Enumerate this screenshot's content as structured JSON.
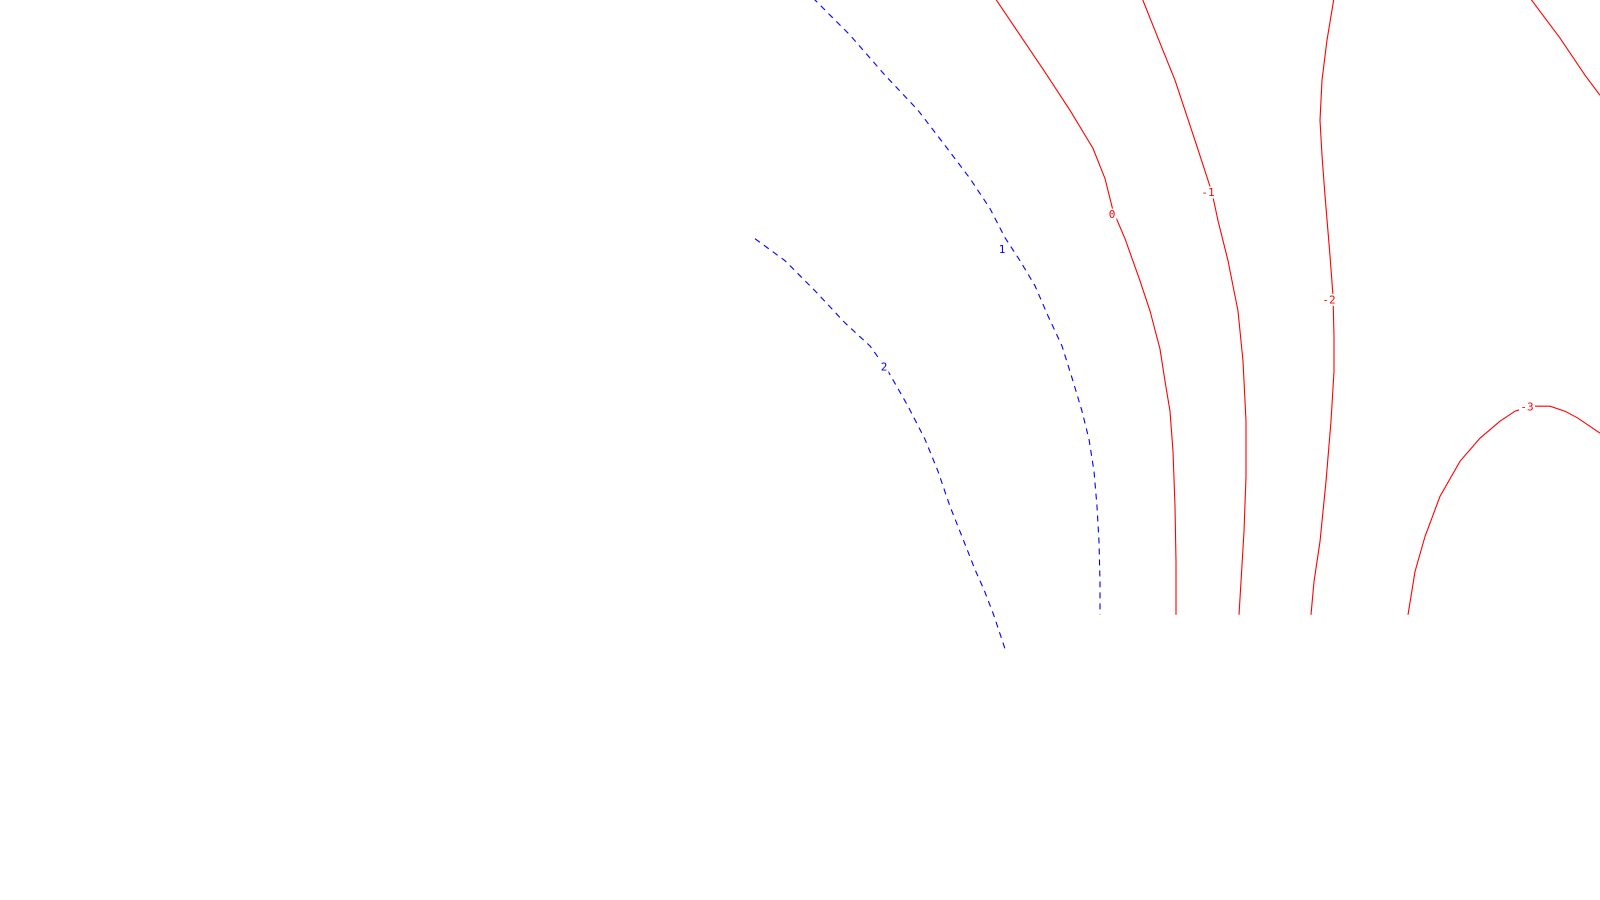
{
  "chart_data": {
    "type": "contour",
    "xlim": [
      0,
      1600
    ],
    "ylim": [
      0,
      700
    ],
    "colors": {
      "positive": "#0000ff",
      "zero_and_negative": "#ff0000",
      "background": "#ffffff"
    },
    "grid": false,
    "legend": "none",
    "levels": [
      {
        "level": 2,
        "label": "2",
        "style": "dashed",
        "color": "#0000ff",
        "points": [
          [
            755,
            462
          ],
          [
            785,
            440
          ],
          [
            815,
            410
          ],
          [
            845,
            378
          ],
          [
            870,
            355
          ],
          [
            888,
            330
          ],
          [
            908,
            295
          ],
          [
            925,
            262
          ],
          [
            938,
            230
          ],
          [
            950,
            195
          ],
          [
            962,
            165
          ],
          [
            975,
            132
          ],
          [
            984,
            112
          ],
          [
            994,
            86
          ],
          [
            1000,
            68
          ],
          [
            1004,
            56
          ],
          [
            1005,
            53
          ]
        ],
        "label_at": [
          884,
          334
        ]
      },
      {
        "level": 1,
        "label": "1",
        "style": "dashed",
        "color": "#0000ff",
        "points": [
          [
            813,
            702
          ],
          [
            850,
            665
          ],
          [
            885,
            625
          ],
          [
            918,
            590
          ],
          [
            945,
            555
          ],
          [
            970,
            522
          ],
          [
            990,
            492
          ],
          [
            1005,
            463
          ],
          [
            1020,
            440
          ],
          [
            1035,
            415
          ],
          [
            1048,
            385
          ],
          [
            1062,
            355
          ],
          [
            1073,
            320
          ],
          [
            1082,
            290
          ],
          [
            1089,
            262
          ],
          [
            1094,
            230
          ],
          [
            1097,
            195
          ],
          [
            1099,
            160
          ],
          [
            1100,
            120
          ],
          [
            1100,
            87
          ]
        ],
        "label_at": [
          1002,
          451
        ]
      },
      {
        "level": 0,
        "label": "0",
        "style": "solid",
        "color": "#ff0000",
        "points": [
          [
            995,
            702
          ],
          [
            1020,
            665
          ],
          [
            1045,
            628
          ],
          [
            1070,
            590
          ],
          [
            1093,
            552
          ],
          [
            1105,
            522
          ],
          [
            1113,
            490
          ],
          [
            1125,
            462
          ],
          [
            1140,
            420
          ],
          [
            1150,
            390
          ],
          [
            1160,
            352
          ],
          [
            1165,
            320
          ],
          [
            1170,
            290
          ],
          [
            1173,
            250
          ],
          [
            1175,
            195
          ],
          [
            1176,
            140
          ],
          [
            1176,
            87
          ]
        ],
        "label_at": [
          1112,
          486
        ]
      },
      {
        "level": -1,
        "label": "-1",
        "style": "solid",
        "color": "#ff0000",
        "points": [
          [
            1142,
            702
          ],
          [
            1158,
            662
          ],
          [
            1175,
            620
          ],
          [
            1195,
            560
          ],
          [
            1212,
            508
          ],
          [
            1218,
            480
          ],
          [
            1228,
            440
          ],
          [
            1238,
            390
          ],
          [
            1243,
            340
          ],
          [
            1246,
            280
          ],
          [
            1246,
            225
          ],
          [
            1244,
            170
          ],
          [
            1241,
            120
          ],
          [
            1239,
            87
          ]
        ],
        "label_at": [
          1208,
          508
        ]
      },
      {
        "level": -2,
        "label": "-2",
        "style": "solid",
        "color": "#ff0000",
        "points": [
          [
            1334,
            702
          ],
          [
            1327,
            660
          ],
          [
            1322,
            620
          ],
          [
            1320,
            580
          ],
          [
            1322,
            545
          ],
          [
            1325,
            505
          ],
          [
            1330,
            445
          ],
          [
            1333,
            405
          ],
          [
            1334,
            365
          ],
          [
            1334,
            330
          ],
          [
            1331,
            280
          ],
          [
            1326,
            220
          ],
          [
            1320,
            160
          ],
          [
            1314,
            120
          ],
          [
            1311,
            87
          ]
        ],
        "label_at": [
          1329,
          401
        ]
      },
      {
        "level": -3,
        "label": "-3",
        "style": "solid",
        "color": "#ff0000",
        "points": [
          [
            1408,
            87
          ],
          [
            1415,
            130
          ],
          [
            1425,
            165
          ],
          [
            1440,
            205
          ],
          [
            1460,
            240
          ],
          [
            1480,
            263
          ],
          [
            1500,
            280
          ],
          [
            1515,
            290
          ],
          [
            1530,
            295
          ],
          [
            1550,
            295
          ],
          [
            1565,
            290
          ],
          [
            1578,
            283
          ],
          [
            1600,
            268
          ]
        ],
        "label_at": [
          1527,
          294
        ]
      },
      {
        "level": -4,
        "label": "",
        "style": "solid",
        "color": "#ff0000",
        "points": [
          [
            1530,
            702
          ],
          [
            1560,
            662
          ],
          [
            1585,
            625
          ],
          [
            1600,
            605
          ]
        ],
        "label_at": null
      }
    ]
  }
}
